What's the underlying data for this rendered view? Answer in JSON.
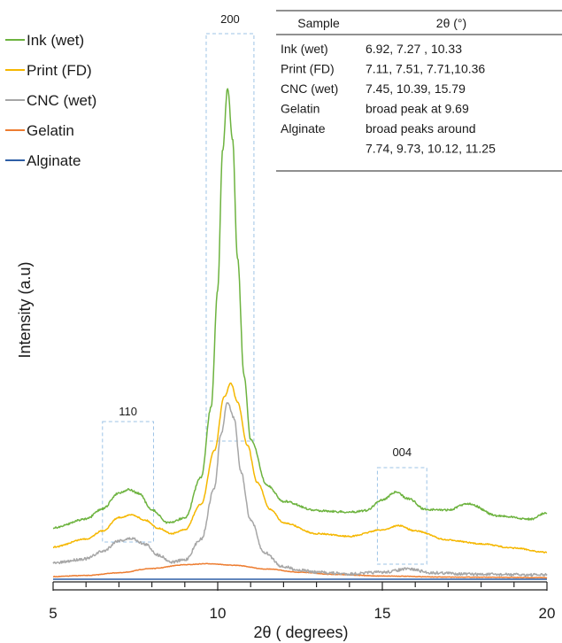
{
  "chart_data": {
    "type": "line",
    "xlabel": "2θ ( degrees)",
    "ylabel": "Intensity  (a.u)",
    "xlim": [
      5,
      20
    ],
    "x_ticks": [
      "5",
      "10",
      "15",
      "20"
    ],
    "grid": false,
    "legend_position": "top-left",
    "series": [
      {
        "name": "Ink (wet)",
        "color": "#6db33f",
        "x": [
          5.0,
          6.0,
          6.5,
          7.0,
          7.3,
          7.6,
          8.0,
          8.5,
          9.0,
          9.5,
          9.8,
          10.0,
          10.15,
          10.3,
          10.45,
          10.6,
          10.8,
          11.0,
          11.5,
          12.0,
          13.0,
          14.0,
          14.5,
          15.0,
          15.4,
          15.8,
          16.3,
          17.0,
          17.6,
          18.5,
          19.5,
          20.0
        ],
        "y": [
          0.096,
          0.112,
          0.131,
          0.161,
          0.167,
          0.16,
          0.129,
          0.105,
          0.114,
          0.19,
          0.32,
          0.54,
          0.8,
          0.915,
          0.82,
          0.6,
          0.38,
          0.26,
          0.175,
          0.145,
          0.128,
          0.125,
          0.128,
          0.148,
          0.162,
          0.15,
          0.13,
          0.129,
          0.141,
          0.118,
          0.112,
          0.124
        ]
      },
      {
        "name": "Print (FD)",
        "color": "#f5b700",
        "x": [
          5.0,
          6.0,
          6.5,
          7.0,
          7.4,
          7.8,
          8.2,
          8.6,
          9.0,
          9.5,
          9.9,
          10.2,
          10.4,
          10.6,
          10.9,
          11.2,
          11.6,
          12.0,
          13.0,
          14.0,
          15.0,
          15.5,
          16.0,
          17.0,
          18.0,
          19.0,
          20.0
        ],
        "y": [
          0.06,
          0.075,
          0.09,
          0.115,
          0.12,
          0.11,
          0.095,
          0.085,
          0.092,
          0.14,
          0.24,
          0.34,
          0.365,
          0.33,
          0.25,
          0.18,
          0.13,
          0.105,
          0.085,
          0.08,
          0.092,
          0.1,
          0.09,
          0.073,
          0.066,
          0.058,
          0.05
        ]
      },
      {
        "name": "CNC (wet)",
        "color": "#a6a6a6",
        "x": [
          5.0,
          6.0,
          6.5,
          7.0,
          7.4,
          7.8,
          8.2,
          8.6,
          9.0,
          9.5,
          9.9,
          10.1,
          10.3,
          10.5,
          10.7,
          11.0,
          11.4,
          12.0,
          12.5,
          13.0,
          14.0,
          15.0,
          15.8,
          16.5,
          18.0,
          20.0
        ],
        "y": [
          0.03,
          0.038,
          0.052,
          0.072,
          0.076,
          0.065,
          0.045,
          0.032,
          0.036,
          0.075,
          0.17,
          0.27,
          0.33,
          0.3,
          0.2,
          0.11,
          0.05,
          0.023,
          0.017,
          0.013,
          0.01,
          0.013,
          0.019,
          0.012,
          0.009,
          0.008
        ]
      },
      {
        "name": "Gelatin",
        "color": "#ed7d31",
        "x": [
          5.0,
          6.0,
          7.0,
          8.0,
          9.0,
          9.7,
          10.5,
          11.5,
          12.5,
          13.5,
          15.0,
          17.0,
          20.0
        ],
        "y": [
          0.005,
          0.007,
          0.012,
          0.02,
          0.027,
          0.029,
          0.026,
          0.019,
          0.013,
          0.009,
          0.006,
          0.004,
          0.003
        ]
      },
      {
        "name": "Alginate",
        "color": "#2e5fa6",
        "x": [
          5.0,
          10.0,
          15.0,
          20.0
        ],
        "y": [
          0.0,
          0.0,
          0.0,
          0.0
        ]
      }
    ],
    "peak_labels": [
      {
        "text": "110",
        "x_from": 6.5,
        "x_to": 8.05
      },
      {
        "text": "200",
        "x_from": 9.65,
        "x_to": 11.1
      },
      {
        "text": "004",
        "x_from": 14.85,
        "x_to": 16.35
      }
    ],
    "table": {
      "headers": [
        "Sample",
        "2θ (°)"
      ],
      "rows": [
        [
          "Ink (wet)",
          "6.92, 7.27 , 10.33"
        ],
        [
          "Print (FD)",
          "7.11, 7.51, 7.71,10.36"
        ],
        [
          "CNC (wet)",
          "7.45, 10.39, 15.79"
        ],
        [
          "Gelatin",
          "broad peak at  9.69"
        ],
        [
          "Alginate",
          "broad peaks around"
        ],
        [
          "",
          "7.74, 9.73, 10.12, 11.25"
        ]
      ]
    }
  }
}
